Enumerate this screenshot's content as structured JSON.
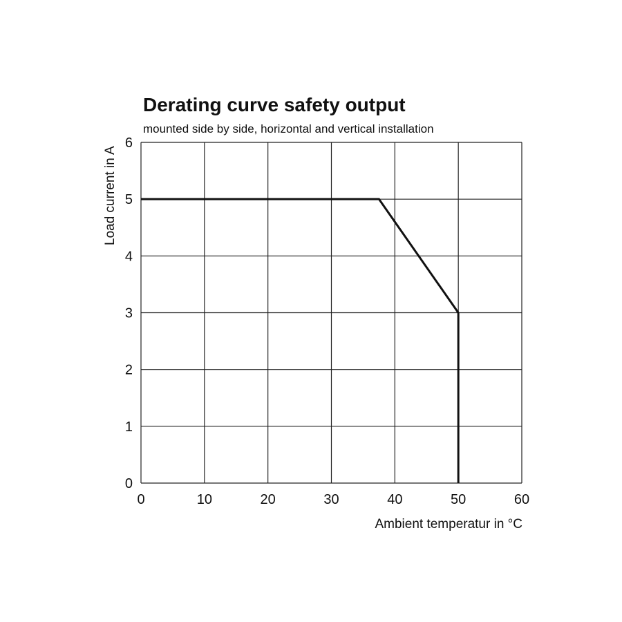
{
  "chart_data": {
    "type": "line",
    "title": "Derating curve safety output",
    "subtitle": "mounted side by side, horizontal and vertical installation",
    "xlabel": "Ambient temperatur in °C",
    "ylabel": "Load  current in A",
    "xlim": [
      0,
      60
    ],
    "ylim": [
      0,
      6
    ],
    "x_ticks": [
      "0",
      "10",
      "20",
      "30",
      "40",
      "50",
      "60"
    ],
    "y_ticks": [
      "0",
      "1",
      "2",
      "3",
      "4",
      "5",
      "6"
    ],
    "grid": true,
    "legend": "none",
    "series": [
      {
        "x": [
          0,
          37.5,
          50,
          50
        ],
        "y": [
          5,
          5,
          3,
          0
        ]
      }
    ]
  }
}
